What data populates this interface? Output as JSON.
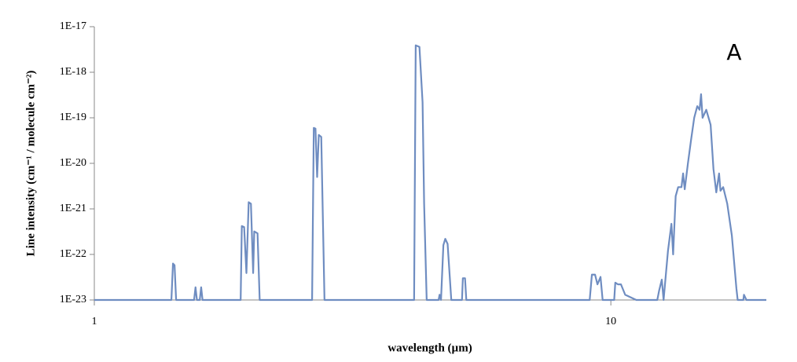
{
  "chart_data": {
    "type": "line",
    "annotation": "A",
    "x_label": "wavelength (µm)",
    "y_label": "Line intensity (cm⁻¹ / molecule cm⁻²)",
    "xscale": "log",
    "yscale": "log",
    "xlim": [
      1,
      20
    ],
    "xticks": [
      1,
      10
    ],
    "ylim": [
      1e-23,
      1e-17
    ],
    "yticks": [
      {
        "value": 1e-23,
        "label": "1E-23"
      },
      {
        "value": 1e-22,
        "label": "1E-22"
      },
      {
        "value": 1e-21,
        "label": "1E-21"
      },
      {
        "value": 1e-20,
        "label": "1E-20"
      },
      {
        "value": 1e-19,
        "label": "1E-19"
      },
      {
        "value": 1e-18,
        "label": "1E-18"
      },
      {
        "value": 1e-17,
        "label": "1E-17"
      }
    ],
    "grid": false,
    "color": "#6f8dc1",
    "x": [
      1,
      1.41,
      1.42,
      1.43,
      1.44,
      1.56,
      1.57,
      1.58,
      1.6,
      1.61,
      1.62,
      1.92,
      1.93,
      1.95,
      1.97,
      1.99,
      2.01,
      2.03,
      2.04,
      2.07,
      2.09,
      2.64,
      2.66,
      2.68,
      2.7,
      2.72,
      2.75,
      2.79,
      4.16,
      4.19,
      4.26,
      4.32,
      4.35,
      4.4,
      4.64,
      4.66,
      4.69,
      4.74,
      4.78,
      4.83,
      4.91,
      5.15,
      5.17,
      5.22,
      5.25,
      9.1,
      9.19,
      9.32,
      9.42,
      9.55,
      9.64,
      10.15,
      10.2,
      10.32,
      10.46,
      10.66,
      11.2,
      12.3,
      12.4,
      12.55,
      12.65,
      12.9,
      13.1,
      13.2,
      13.35,
      13.5,
      13.7,
      13.8,
      13.9,
      14.1,
      14.3,
      14.5,
      14.7,
      14.85,
      14.95,
      15.05,
      15.3,
      15.6,
      15.8,
      16.0,
      16.2,
      16.3,
      16.5,
      16.8,
      17.15,
      17.5,
      17.6,
      18.05,
      18.1,
      18.3,
      20
    ],
    "values": [
      1e-23,
      1e-23,
      6.3e-23,
      5.8e-23,
      1e-23,
      1e-23,
      1.9e-23,
      1e-23,
      1e-23,
      1.9e-23,
      1e-23,
      1e-23,
      4.2e-22,
      4e-22,
      3.9e-23,
      1.4e-21,
      1.3e-21,
      3.9e-23,
      3.2e-22,
      2.9e-22,
      1e-23,
      1e-23,
      6e-20,
      5.8e-20,
      5e-21,
      4.2e-20,
      3.8e-20,
      1e-23,
      1e-23,
      3.9e-18,
      3.6e-18,
      2.2e-19,
      1.3e-21,
      1e-23,
      1e-23,
      1.3e-23,
      1e-23,
      1.6e-22,
      2.2e-22,
      1.7e-22,
      1e-23,
      1e-23,
      3e-23,
      3e-23,
      1e-23,
      1e-23,
      3.6e-23,
      3.6e-23,
      2.2e-23,
      3.2e-23,
      1e-23,
      1e-23,
      2.4e-23,
      2.2e-23,
      2.2e-23,
      1.3e-23,
      1e-23,
      1e-23,
      1.6e-23,
      2.8e-23,
      1e-23,
      1.2e-22,
      4.7e-22,
      1e-22,
      1.9e-21,
      3e-21,
      3e-21,
      6e-21,
      2.7e-21,
      1e-20,
      3.3e-20,
      1e-19,
      1.8e-19,
      1.5e-19,
      3.3e-19,
      1e-19,
      1.5e-19,
      7e-20,
      7.5e-21,
      2.3e-21,
      6e-21,
      2.5e-21,
      3e-21,
      1.3e-21,
      2.6e-22,
      1.8e-23,
      1e-23,
      1e-23,
      1.3e-23,
      1e-23,
      1e-23
    ]
  }
}
